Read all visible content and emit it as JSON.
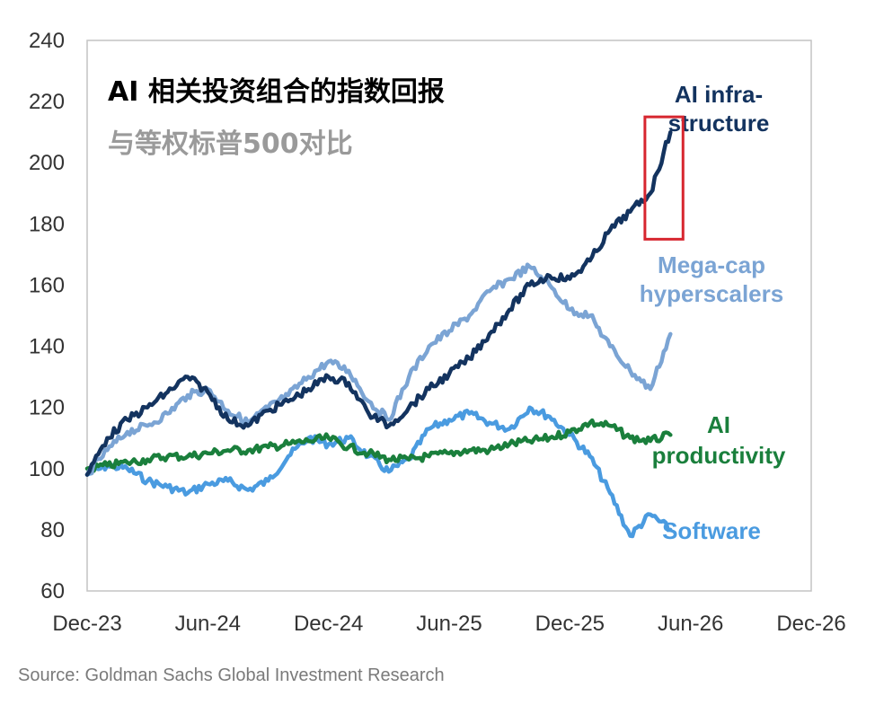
{
  "chart_data": {
    "type": "line",
    "title": "AI 相关投资组合的指数回报",
    "subtitle": "与等权标普500对比",
    "xlabel": "",
    "ylabel": "",
    "ylim": [
      60,
      240
    ],
    "yticks": [
      "60",
      "80",
      "100",
      "120",
      "140",
      "160",
      "180",
      "200",
      "220",
      "240"
    ],
    "xlim": [
      "2023-12",
      "2026-12"
    ],
    "xticks": [
      "Dec-23",
      "Jun-24",
      "Dec-24",
      "Jun-25",
      "Dec-25",
      "Jun-26",
      "Dec-26"
    ],
    "grid": false,
    "series": [
      {
        "name": "Software",
        "label_lines": [
          "Software"
        ],
        "color": "#4a9be0",
        "points": [
          [
            "2023-12",
            98
          ],
          [
            "2024-01",
            101
          ],
          [
            "2024-02",
            100
          ],
          [
            "2024-03",
            96
          ],
          [
            "2024-04",
            94
          ],
          [
            "2024-05",
            92
          ],
          [
            "2024-06",
            95
          ],
          [
            "2024-07",
            96
          ],
          [
            "2024-08",
            93
          ],
          [
            "2024-09",
            96
          ],
          [
            "2024-10",
            104
          ],
          [
            "2024-11",
            110
          ],
          [
            "2024-12",
            108
          ],
          [
            "2025-01",
            110
          ],
          [
            "2025-02",
            104
          ],
          [
            "2025-03",
            99
          ],
          [
            "2025-04",
            103
          ],
          [
            "2025-05",
            113
          ],
          [
            "2025-06",
            116
          ],
          [
            "2025-07",
            118
          ],
          [
            "2025-08",
            115
          ],
          [
            "2025-09",
            113
          ],
          [
            "2025-10",
            120
          ],
          [
            "2025-11",
            117
          ],
          [
            "2025-12",
            111
          ],
          [
            "2026-01",
            104
          ],
          [
            "2026-02",
            92
          ],
          [
            "2026-03",
            78
          ],
          [
            "2026-04",
            85
          ],
          [
            "2026-05",
            80
          ]
        ]
      },
      {
        "name": "AI productivity",
        "label_lines": [
          "AI",
          "productivity"
        ],
        "color": "#1a7f3c",
        "points": [
          [
            "2023-12",
            100
          ],
          [
            "2024-01",
            101
          ],
          [
            "2024-02",
            102
          ],
          [
            "2024-03",
            103
          ],
          [
            "2024-04",
            104
          ],
          [
            "2024-05",
            104
          ],
          [
            "2024-06",
            105
          ],
          [
            "2024-07",
            106
          ],
          [
            "2024-08",
            106
          ],
          [
            "2024-09",
            107
          ],
          [
            "2024-10",
            108
          ],
          [
            "2024-11",
            109
          ],
          [
            "2024-12",
            110
          ],
          [
            "2025-01",
            107
          ],
          [
            "2025-02",
            105
          ],
          [
            "2025-03",
            103
          ],
          [
            "2025-04",
            103
          ],
          [
            "2025-05",
            104
          ],
          [
            "2025-06",
            105
          ],
          [
            "2025-07",
            106
          ],
          [
            "2025-08",
            106
          ],
          [
            "2025-09",
            108
          ],
          [
            "2025-10",
            109
          ],
          [
            "2025-11",
            110
          ],
          [
            "2025-12",
            112
          ],
          [
            "2026-01",
            115
          ],
          [
            "2026-02",
            114
          ],
          [
            "2026-03",
            110
          ],
          [
            "2026-04",
            109
          ],
          [
            "2026-05",
            111
          ]
        ]
      },
      {
        "name": "Mega-cap hyperscalers",
        "label_lines": [
          "Mega-cap",
          "hyperscalers"
        ],
        "color": "#7ba4d4",
        "points": [
          [
            "2023-12",
            98
          ],
          [
            "2024-01",
            106
          ],
          [
            "2024-02",
            112
          ],
          [
            "2024-03",
            114
          ],
          [
            "2024-04",
            118
          ],
          [
            "2024-05",
            124
          ],
          [
            "2024-06",
            126
          ],
          [
            "2024-07",
            119
          ],
          [
            "2024-08",
            115
          ],
          [
            "2024-09",
            120
          ],
          [
            "2024-10",
            124
          ],
          [
            "2024-11",
            130
          ],
          [
            "2024-12",
            135
          ],
          [
            "2025-01",
            132
          ],
          [
            "2025-02",
            122
          ],
          [
            "2025-03",
            116
          ],
          [
            "2025-04",
            130
          ],
          [
            "2025-05",
            140
          ],
          [
            "2025-06",
            145
          ],
          [
            "2025-07",
            150
          ],
          [
            "2025-08",
            158
          ],
          [
            "2025-09",
            162
          ],
          [
            "2025-10",
            166
          ],
          [
            "2025-11",
            160
          ],
          [
            "2025-12",
            152
          ],
          [
            "2026-01",
            150
          ],
          [
            "2026-02",
            140
          ],
          [
            "2026-03",
            132
          ],
          [
            "2026-04",
            126
          ],
          [
            "2026-05",
            144
          ]
        ]
      },
      {
        "name": "AI infra-structure",
        "label_lines": [
          "AI infra-",
          "structure"
        ],
        "color": "#13335f",
        "points": [
          [
            "2023-12",
            98
          ],
          [
            "2024-01",
            110
          ],
          [
            "2024-02",
            116
          ],
          [
            "2024-03",
            120
          ],
          [
            "2024-04",
            125
          ],
          [
            "2024-05",
            130
          ],
          [
            "2024-06",
            125
          ],
          [
            "2024-07",
            116
          ],
          [
            "2024-08",
            114
          ],
          [
            "2024-09",
            119
          ],
          [
            "2024-10",
            122
          ],
          [
            "2024-11",
            126
          ],
          [
            "2024-12",
            130
          ],
          [
            "2025-01",
            128
          ],
          [
            "2025-02",
            118
          ],
          [
            "2025-03",
            114
          ],
          [
            "2025-04",
            120
          ],
          [
            "2025-05",
            126
          ],
          [
            "2025-06",
            131
          ],
          [
            "2025-07",
            136
          ],
          [
            "2025-08",
            144
          ],
          [
            "2025-09",
            152
          ],
          [
            "2025-10",
            160
          ],
          [
            "2025-11",
            163
          ],
          [
            "2025-12",
            162
          ],
          [
            "2026-01",
            168
          ],
          [
            "2026-02",
            178
          ],
          [
            "2026-03",
            184
          ],
          [
            "2026-04",
            190
          ],
          [
            "2026-05",
            210
          ]
        ]
      }
    ],
    "highlight": {
      "x_range": [
        "2026-04",
        "2026-05"
      ],
      "y_range": [
        175,
        215
      ],
      "color": "#d7262f"
    }
  },
  "source": "Source: Goldman Sachs Global Investment Research"
}
